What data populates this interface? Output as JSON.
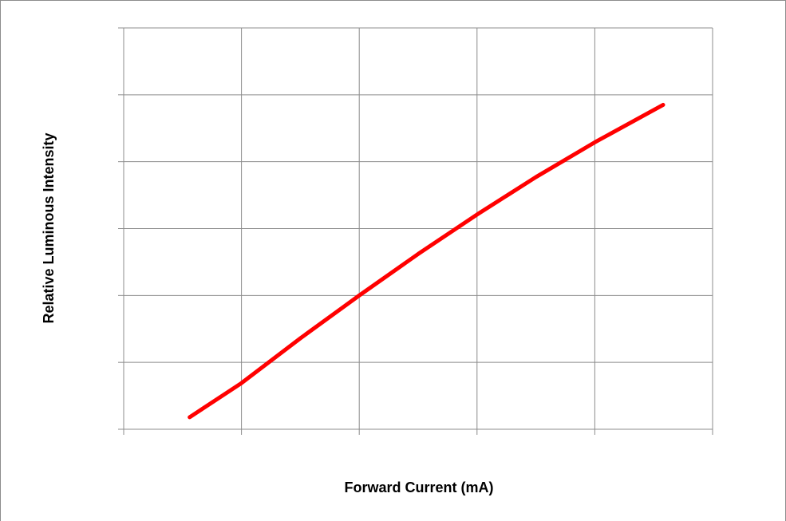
{
  "chart_data": {
    "type": "line",
    "x_label": "Forward Current (mA)",
    "y_label": "Relative Luminous Intensity",
    "xlim": [
      0,
      5
    ],
    "xticks": [
      0,
      1,
      2,
      3,
      4,
      5
    ],
    "ylim": [
      0,
      6
    ],
    "yticks": [
      0,
      1,
      2,
      3,
      4,
      5,
      6
    ],
    "grid": true,
    "series": [
      {
        "color": "#ff0000",
        "x": [
          0.56,
          1,
          1.5,
          2,
          2.5,
          3,
          3.5,
          4,
          4.58
        ],
        "values": [
          0.18,
          0.69,
          1.36,
          2.0,
          2.62,
          3.21,
          3.77,
          4.29,
          4.85
        ]
      }
    ]
  }
}
